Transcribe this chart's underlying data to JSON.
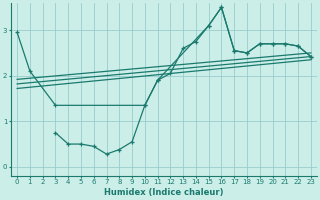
{
  "xlabel": "Humidex (Indice chaleur)",
  "background_color": "#cceee8",
  "grid_color": "#99cccc",
  "line_color": "#1a7a6e",
  "xlim": [
    -0.5,
    23.5
  ],
  "ylim": [
    -0.2,
    3.6
  ],
  "yticks": [
    0,
    1,
    2,
    3
  ],
  "xticks": [
    0,
    1,
    2,
    3,
    4,
    5,
    6,
    7,
    8,
    9,
    10,
    11,
    12,
    13,
    14,
    15,
    16,
    17,
    18,
    19,
    20,
    21,
    22,
    23
  ],
  "series1_x": [
    0,
    1,
    3,
    10,
    11,
    12,
    13,
    14,
    15,
    16,
    17,
    18,
    19,
    20,
    21,
    22,
    23
  ],
  "series1_y": [
    2.95,
    2.1,
    1.35,
    1.35,
    1.9,
    2.05,
    2.6,
    2.75,
    3.1,
    3.5,
    2.55,
    2.5,
    2.7,
    2.7,
    2.7,
    2.65,
    2.42
  ],
  "series2_x": [
    3,
    4,
    5,
    6,
    7,
    8,
    9,
    10,
    11,
    15,
    16,
    17,
    18,
    19,
    20,
    21,
    22,
    23
  ],
  "series2_y": [
    0.75,
    0.5,
    0.5,
    0.45,
    0.28,
    0.38,
    0.55,
    1.35,
    1.9,
    3.1,
    3.5,
    2.55,
    2.5,
    2.7,
    2.7,
    2.7,
    2.65,
    2.42
  ],
  "line1_x": [
    0,
    23
  ],
  "line1_y": [
    1.72,
    2.35
  ],
  "line2_x": [
    0,
    23
  ],
  "line2_y": [
    1.82,
    2.42
  ],
  "line3_x": [
    0,
    23
  ],
  "line3_y": [
    1.92,
    2.5
  ]
}
